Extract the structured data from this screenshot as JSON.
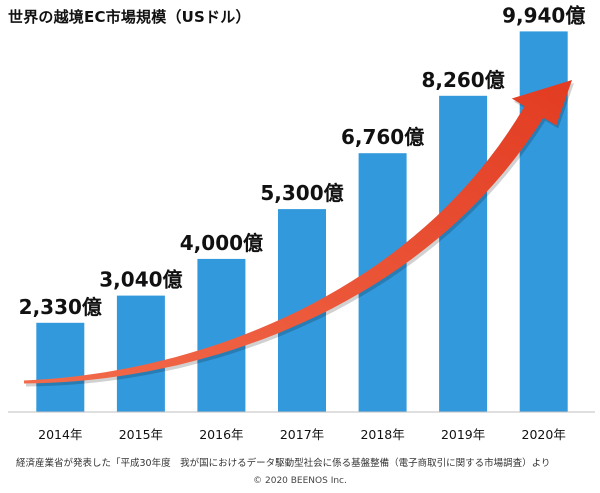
{
  "chart_data": {
    "type": "bar",
    "title": "世界の越境EC市場規模（USドル）",
    "categories": [
      "2014年",
      "2015年",
      "2016年",
      "2017年",
      "2018年",
      "2019年",
      "2020年"
    ],
    "values": [
      2330,
      3040,
      4000,
      5300,
      6760,
      8260,
      9940
    ],
    "data_labels": [
      "2,330億",
      "3,040億",
      "4,000億",
      "5,300億",
      "6,760億",
      "8,260億",
      "9,940億"
    ],
    "unit": "億USドル",
    "ylim": [
      0,
      10500
    ],
    "grid": false,
    "legend": "none",
    "bar_color": "#3399dd",
    "annotation_arrow": {
      "description": "growth-trend-arrow",
      "color": "#e8472c"
    }
  },
  "footer": {
    "source": "経済産業省が発表した「平成30年度　我が国におけるデータ駆動型社会に係る基盤整備（電子商取引に関する市場調査）より",
    "copyright": "© 2020 BEENOS Inc."
  }
}
